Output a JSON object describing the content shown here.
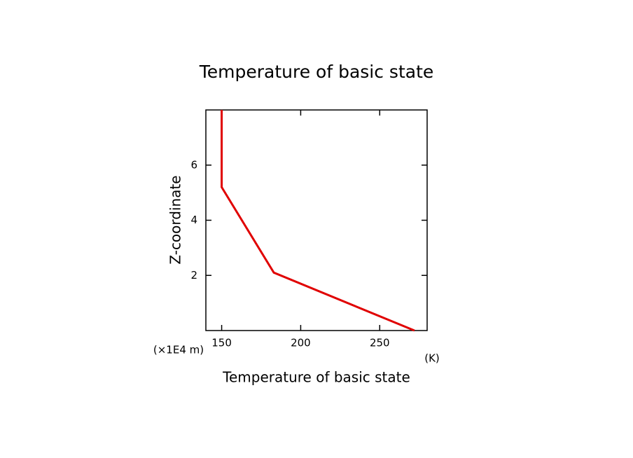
{
  "chart_data": {
    "type": "line",
    "title": "Temperature of basic state",
    "x_label": "Temperature of basic state",
    "x_unit": "(K)",
    "y_label": "Z-coordinate",
    "y_unit": "(×1E4 m)",
    "series": [
      {
        "color": "#e00000",
        "x": [
          272,
          183,
          150,
          150
        ],
        "values": [
          0,
          2.1,
          5.2,
          8
        ]
      }
    ],
    "xlim": [
      140,
      280
    ],
    "xticks": [
      150,
      200,
      250
    ],
    "ylim": [
      0,
      8
    ],
    "yticks": [
      2,
      4,
      6
    ]
  }
}
